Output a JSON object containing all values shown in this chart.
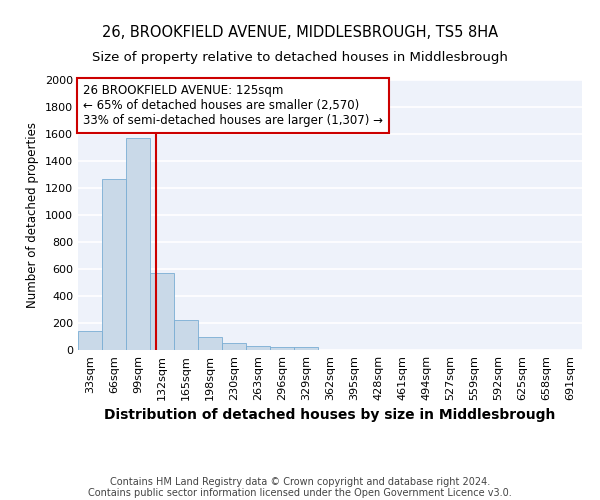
{
  "title_line1": "26, BROOKFIELD AVENUE, MIDDLESBROUGH, TS5 8HA",
  "title_line2": "Size of property relative to detached houses in Middlesbrough",
  "xlabel": "Distribution of detached houses by size in Middlesbrough",
  "ylabel": "Number of detached properties",
  "bar_color": "#c9d9e8",
  "bar_edge_color": "#7aadd4",
  "background_color": "#eef2fa",
  "grid_color": "#ffffff",
  "categories": [
    "33sqm",
    "66sqm",
    "99sqm",
    "132sqm",
    "165sqm",
    "198sqm",
    "230sqm",
    "263sqm",
    "296sqm",
    "329sqm",
    "362sqm",
    "395sqm",
    "428sqm",
    "461sqm",
    "494sqm",
    "527sqm",
    "559sqm",
    "592sqm",
    "625sqm",
    "658sqm",
    "691sqm"
  ],
  "values": [
    140,
    1270,
    1570,
    570,
    220,
    100,
    50,
    30,
    20,
    20,
    0,
    0,
    0,
    0,
    0,
    0,
    0,
    0,
    0,
    0,
    0
  ],
  "ylim": [
    0,
    2000
  ],
  "yticks": [
    0,
    200,
    400,
    600,
    800,
    1000,
    1200,
    1400,
    1600,
    1800,
    2000
  ],
  "vline_x": 2.76,
  "vline_color": "#cc0000",
  "annotation_text": "26 BROOKFIELD AVENUE: 125sqm\n← 65% of detached houses are smaller (2,570)\n33% of semi-detached houses are larger (1,307) →",
  "annotation_box_color": "#cc0000",
  "footer_text": "Contains HM Land Registry data © Crown copyright and database right 2024.\nContains public sector information licensed under the Open Government Licence v3.0.",
  "title_fontsize": 10.5,
  "subtitle_fontsize": 9.5,
  "xlabel_fontsize": 10,
  "ylabel_fontsize": 8.5,
  "tick_fontsize": 8,
  "annotation_fontsize": 8.5
}
